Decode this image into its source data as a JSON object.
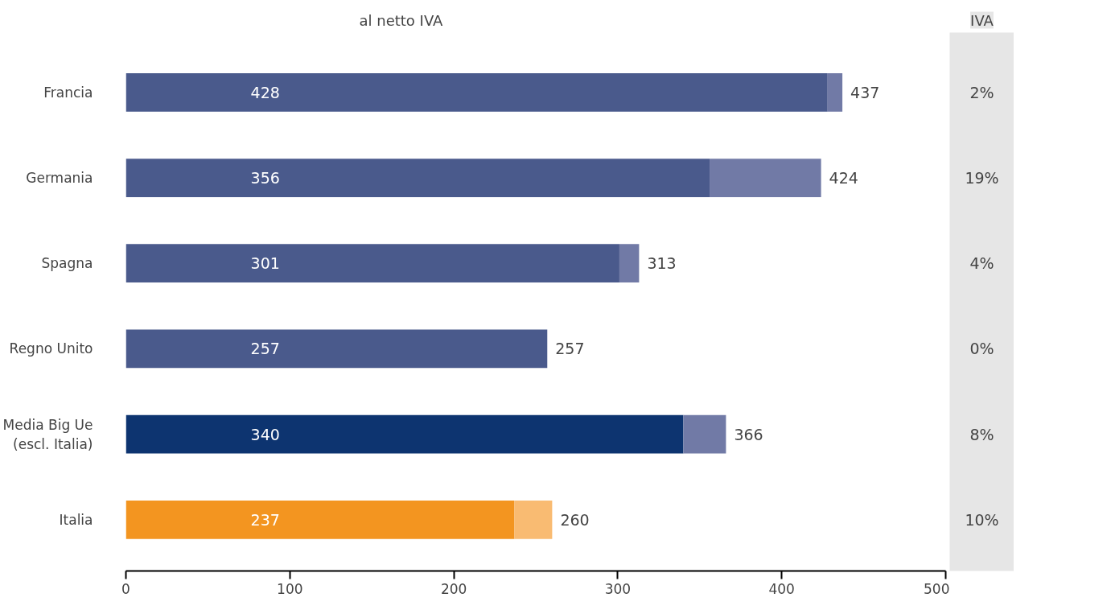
{
  "chart_data": {
    "type": "bar",
    "orientation": "horizontal",
    "stacked": true,
    "categories": [
      "Francia",
      "Germania",
      "Spagna",
      "Regno Unito",
      "Media Big Ue\n(escl. Italia)",
      "Italia"
    ],
    "series": [
      {
        "colors": [
          "#4a5a8c",
          "#4a5a8c",
          "#4a5a8c",
          "#4a5a8c",
          "#0d3470",
          "#f39520"
        ],
        "values": [
          428,
          356,
          301,
          257,
          340,
          237
        ],
        "value_labels": [
          "428",
          "356",
          "301",
          "257",
          "340",
          "237"
        ]
      },
      {
        "colors": [
          "#717aa6",
          "#717aa6",
          "#717aa6",
          "#717aa6",
          "#717aa6",
          "#f9bb72"
        ],
        "values": [
          9,
          68,
          12,
          0,
          26,
          23
        ]
      }
    ],
    "totals": [
      "437",
      "424",
      "313",
      "257",
      "366",
      "260"
    ],
    "xlim": [
      0,
      500
    ],
    "xticks": [
      0,
      100,
      200,
      300,
      400,
      500
    ],
    "grid": false,
    "annotations": [
      "al netto IVA",
      "IVA",
      "2%",
      "19%",
      "4%",
      "0%",
      "8%",
      "10%"
    ]
  }
}
